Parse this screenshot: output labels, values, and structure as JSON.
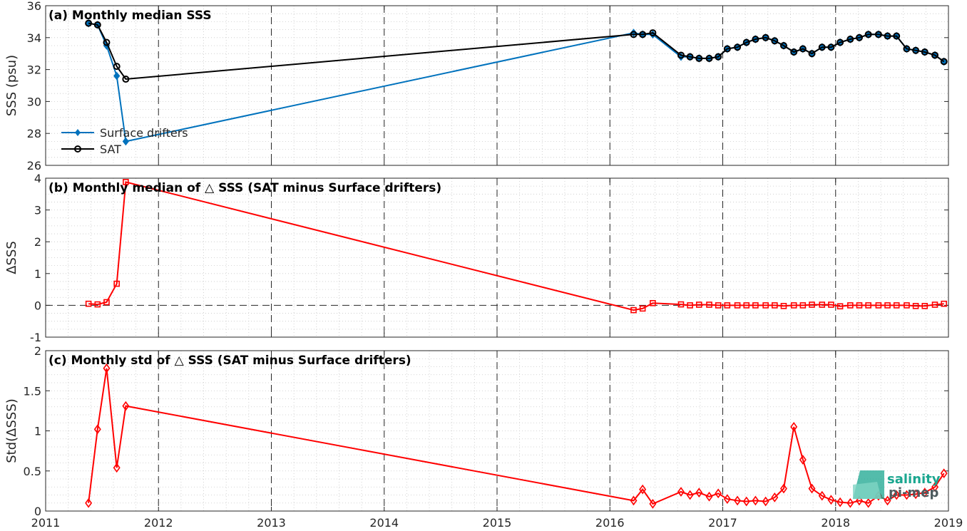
{
  "colors": {
    "drifters": "#0072BD",
    "sat": "#000000",
    "delta": "#FF0000",
    "grid": "#d9d9d9",
    "vline": "#262626",
    "logo_teal": "#1aa68f",
    "logo_dark": "#4d5b5e"
  },
  "logo": {
    "word1": "salinity",
    "word2": "pi-mep"
  },
  "x_ticks": [
    "2011",
    "2012",
    "2013",
    "2014",
    "2015",
    "2016",
    "2017",
    "2018",
    "2019"
  ],
  "chart_data": [
    {
      "type": "line",
      "title": "(a) Monthly median SSS",
      "ylabel": "SSS (psu)",
      "xlabel": "",
      "ylim": [
        26,
        36
      ],
      "yticks": [
        26,
        28,
        30,
        32,
        34,
        36
      ],
      "xlim": [
        2011,
        2019
      ],
      "grid": true,
      "legend": "bottom-left",
      "x": [
        2011.38,
        2011.46,
        2011.54,
        2011.63,
        2011.71,
        2016.21,
        2016.29,
        2016.38,
        2016.63,
        2016.71,
        2016.79,
        2016.88,
        2016.96,
        2017.04,
        2017.13,
        2017.21,
        2017.29,
        2017.38,
        2017.46,
        2017.54,
        2017.63,
        2017.71,
        2017.79,
        2017.88,
        2017.96,
        2018.04,
        2018.13,
        2018.21,
        2018.29,
        2018.38,
        2018.46,
        2018.54,
        2018.63,
        2018.71,
        2018.79,
        2018.88,
        2018.96
      ],
      "series": [
        {
          "name": "Surface drifters",
          "marker": "diamond-filled",
          "values": [
            34.9,
            34.8,
            33.5,
            31.6,
            27.5,
            34.3,
            34.2,
            34.2,
            32.8,
            32.8,
            32.7,
            32.7,
            32.8,
            33.3,
            33.4,
            33.7,
            33.9,
            34.0,
            33.8,
            33.5,
            33.1,
            33.3,
            33.0,
            33.4,
            33.4,
            33.7,
            33.9,
            34.0,
            34.2,
            34.2,
            34.1,
            34.1,
            33.3,
            33.2,
            33.1,
            32.9,
            32.5
          ]
        },
        {
          "name": "SAT",
          "marker": "circle-open",
          "values": [
            34.9,
            34.8,
            33.7,
            32.2,
            31.4,
            34.2,
            34.2,
            34.3,
            32.9,
            32.8,
            32.7,
            32.7,
            32.8,
            33.3,
            33.4,
            33.7,
            33.9,
            34.0,
            33.8,
            33.5,
            33.1,
            33.3,
            33.0,
            33.4,
            33.4,
            33.7,
            33.9,
            34.0,
            34.2,
            34.2,
            34.1,
            34.1,
            33.3,
            33.2,
            33.1,
            32.9,
            32.5
          ]
        }
      ]
    },
    {
      "type": "line",
      "title": "(b) Monthly median of △ SSS (SAT minus Surface drifters)",
      "ylabel": "ΔSSS",
      "xlabel": "",
      "ylim": [
        -1,
        4
      ],
      "yticks": [
        -1,
        0,
        1,
        2,
        3,
        4
      ],
      "xlim": [
        2011,
        2019
      ],
      "grid": true,
      "reference_line": 0,
      "x": [
        2011.38,
        2011.46,
        2011.54,
        2011.63,
        2011.71,
        2016.21,
        2016.29,
        2016.38,
        2016.63,
        2016.71,
        2016.79,
        2016.88,
        2016.96,
        2017.04,
        2017.13,
        2017.21,
        2017.29,
        2017.38,
        2017.46,
        2017.54,
        2017.63,
        2017.71,
        2017.79,
        2017.88,
        2017.96,
        2018.04,
        2018.13,
        2018.21,
        2018.29,
        2018.38,
        2018.46,
        2018.54,
        2018.63,
        2018.71,
        2018.79,
        2018.88,
        2018.96
      ],
      "series": [
        {
          "marker": "square-open",
          "values": [
            0.05,
            0.03,
            0.1,
            0.68,
            3.88,
            -0.15,
            -0.1,
            0.07,
            0.03,
            0.0,
            0.02,
            0.02,
            0.0,
            0.0,
            0.0,
            0.0,
            0.0,
            0.0,
            0.0,
            -0.02,
            0.0,
            0.0,
            0.02,
            0.02,
            0.02,
            -0.03,
            0.0,
            0.0,
            0.0,
            0.0,
            0.0,
            0.0,
            0.0,
            -0.02,
            -0.02,
            0.02,
            0.05
          ]
        }
      ]
    },
    {
      "type": "line",
      "title": "(c) Monthly std of △ SSS (SAT minus Surface drifters)",
      "ylabel": "Std(ΔSSS)",
      "xlabel": "",
      "ylim": [
        0,
        2
      ],
      "yticks": [
        0,
        0.5,
        1,
        1.5,
        2
      ],
      "xlim": [
        2011,
        2019
      ],
      "grid": true,
      "x": [
        2011.38,
        2011.46,
        2011.54,
        2011.63,
        2011.71,
        2016.21,
        2016.29,
        2016.38,
        2016.63,
        2016.71,
        2016.79,
        2016.88,
        2016.96,
        2017.04,
        2017.13,
        2017.21,
        2017.29,
        2017.38,
        2017.46,
        2017.54,
        2017.63,
        2017.71,
        2017.79,
        2017.88,
        2017.96,
        2018.04,
        2018.13,
        2018.21,
        2018.29,
        2018.38,
        2018.46,
        2018.54,
        2018.63,
        2018.71,
        2018.79,
        2018.88,
        2018.96
      ],
      "series": [
        {
          "marker": "diamond-open",
          "values": [
            0.1,
            1.02,
            1.78,
            0.54,
            1.31,
            0.13,
            0.27,
            0.09,
            0.24,
            0.2,
            0.23,
            0.18,
            0.22,
            0.15,
            0.13,
            0.12,
            0.13,
            0.12,
            0.17,
            0.28,
            1.05,
            0.64,
            0.28,
            0.19,
            0.14,
            0.11,
            0.1,
            0.13,
            0.1,
            0.19,
            0.13,
            0.2,
            0.2,
            0.21,
            0.23,
            0.3,
            0.47
          ]
        }
      ]
    }
  ]
}
